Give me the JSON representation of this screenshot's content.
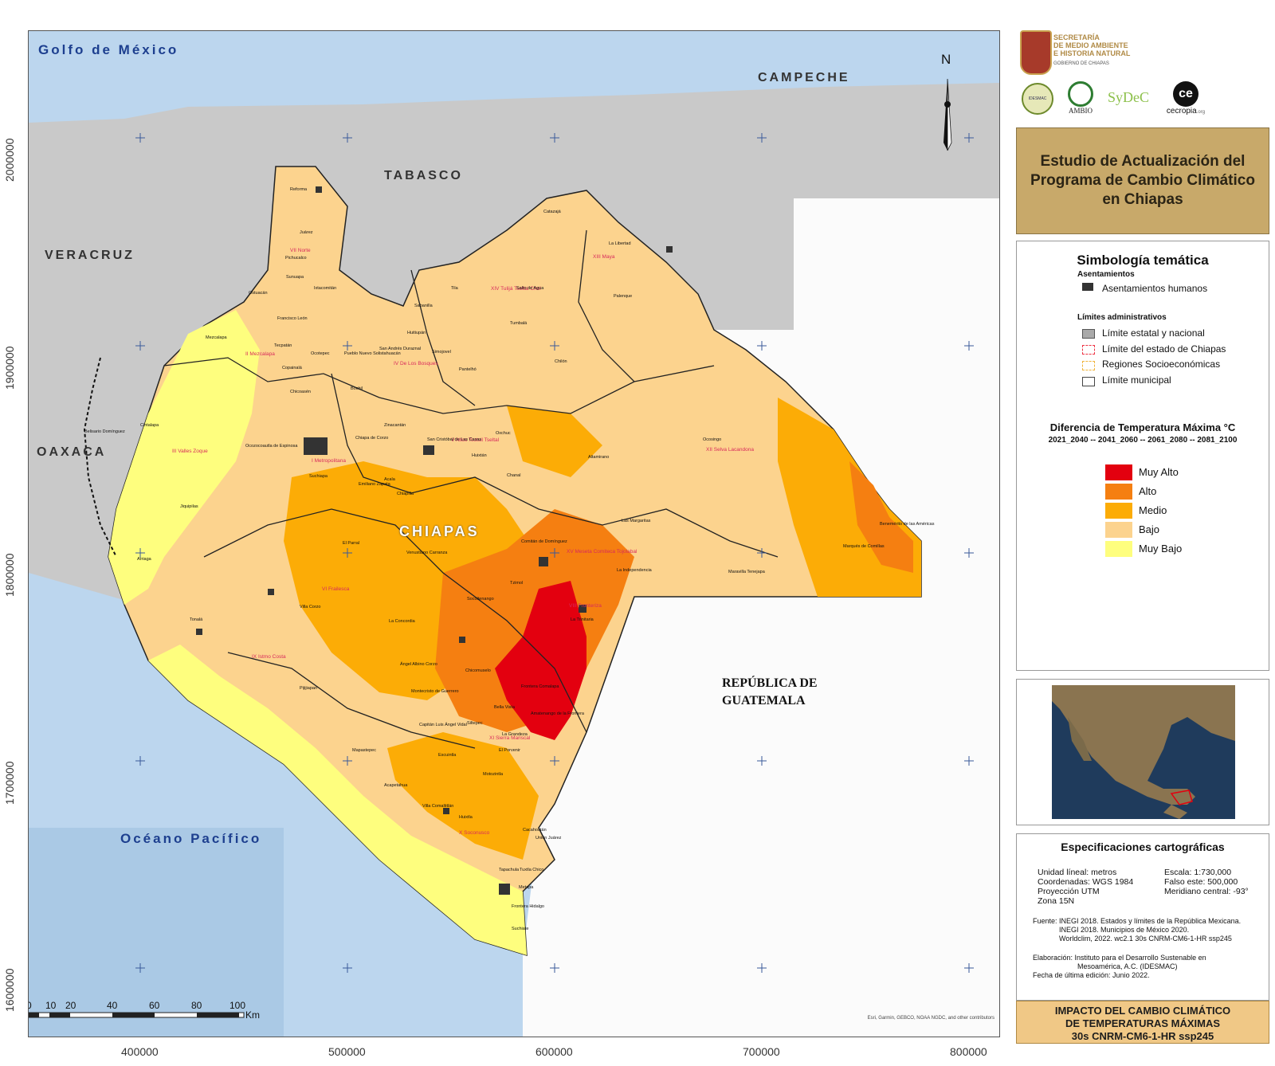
{
  "map": {
    "labels": {
      "golfo": "Golfo de México",
      "campeche": "CAMPECHE",
      "tabasco": "TABASCO",
      "veracruz": "VERACRUZ",
      "oaxaca": "OAXACA",
      "chiapas": "CHIAPAS",
      "guatemala_1": "REPÚBLICA DE",
      "guatemala_2": "GUATEMALA",
      "pacifico": "Océano Pacífico",
      "north": "N"
    },
    "regions": [
      "VII Norte",
      "XIII Maya",
      "XIV Tulijá Tseltal Chol",
      "II Mezcalapa",
      "V Altos Tsotsil Tseltal",
      "XV Meseta Comiteca Tojolabal",
      "VI Frailesca",
      "IX Istmo Costa",
      "XI Sierra Mariscal",
      "X Soconusco",
      "XII Selva Lacandona",
      "III Valles Zoque",
      "I Metropolitana",
      "IV De Los Bosques",
      "VIII Fronteriza"
    ],
    "places": [
      "Reforma",
      "Juárez",
      "Ostuacán",
      "Pichucalco",
      "Sunuapa",
      "Ixtacomitán",
      "Catazajá",
      "La Libertad",
      "Palenque",
      "Salto de Agua",
      "Tila",
      "Tumbalá",
      "Sabanilla",
      "Huitiupán",
      "Mezcalapa",
      "Francisco León",
      "Tecpatán",
      "Copainalá",
      "Chicoasén",
      "Ocotepec",
      "Pueblo Nuevo Solistahuacán",
      "San Andrés Duraznal",
      "Simojovel",
      "Chilón",
      "Pantelhó",
      "Bochil",
      "Ocosingo",
      "Belisario Domínguez",
      "Cintalapa",
      "Jiquipilas",
      "Ocozocoautla de Espinosa",
      "Suchiapa",
      "Chiapa de Corzo",
      "Zinacantán",
      "San Cristóbal de Las Casas",
      "Huixtán",
      "Oxchuc",
      "Chanal",
      "Altamirano",
      "Las Margaritas",
      "Benemérito de las Américas",
      "Marqués de Comillas",
      "Maravilla Tenejapa",
      "Comitán de Domínguez",
      "La Independencia",
      "Tzimol",
      "La Trinitaria",
      "Frontera Comalapa",
      "Chicomuselo",
      "Socoltenango",
      "Venustiano Carranza",
      "Acala",
      "Emiliano Zapata",
      "Chiapilla",
      "El Parral",
      "Villa Corzo",
      "La Concordia",
      "Tonalá",
      "Arriaga",
      "Pijijiapan",
      "Mapastepec",
      "Acapetahua",
      "Escuintla",
      "Villa Comaltitlán",
      "Huixtla",
      "Tapachula",
      "Suchiate",
      "Frontera Hidalgo",
      "Metapa",
      "Cacahoatán",
      "Unión Juárez",
      "Tuxtla Chico",
      "Motozintla",
      "Siltepec",
      "El Porvenir",
      "La Grandeza",
      "Bella Vista",
      "Amatenango de la Frontera",
      "Capitán Luis Ángel Vidal",
      "Montecristo de Guerrero",
      "Ángel Albino Corzo"
    ],
    "credit": "Esri, Garmin, GEBCO, NOAA NGDC, and other contributors",
    "x_ticks": [
      "400000",
      "500000",
      "600000",
      "700000",
      "800000"
    ],
    "y_ticks": [
      "2000000",
      "1900000",
      "1800000",
      "1700000",
      "1600000"
    ],
    "scale_numbers": [
      "0",
      "10",
      "20",
      "40",
      "60",
      "80",
      "100"
    ],
    "scale_unit": "Km"
  },
  "header": {
    "logo_lines": [
      "SECRETARÍA",
      "DE MEDIO AMBIENTE",
      "E HISTORIA NATURAL",
      "GOBIERNO DE CHIAPAS"
    ],
    "partner_logos": [
      "IDESMAC",
      "AMBIO",
      "SyDeC",
      "cecropia.org"
    ],
    "cecropia_mark": "ce",
    "cecropia_text": "cecropia",
    "cecropia_suffix": ".org"
  },
  "title": {
    "line1": "Estudio de Actualización del",
    "line2": "Programa de Cambio Climático",
    "line3": "en Chiapas"
  },
  "legend": {
    "heading": "Simbología temática",
    "asentamientos_title": "Asentamientos",
    "asentamientos_item": "Asentamientos humanos",
    "limites_title": "Límites administrativos",
    "limite_estatal": "Límite estatal y nacional",
    "limite_chiapas": "Límite del estado de Chiapas",
    "regiones": "Regiones Socioeconómicas",
    "limite_municipal": "Límite municipal",
    "temp_title": "Diferencia de Temperatura Máxima °C",
    "temp_periods": "2021_2040 -- 2041_2060 -- 2061_2080 -- 2081_2100",
    "classes": [
      {
        "label": "Muy Alto",
        "color": "#e3000f"
      },
      {
        "label": "Alto",
        "color": "#f57f11"
      },
      {
        "label": "Medio",
        "color": "#fcac06"
      },
      {
        "label": "Bajo",
        "color": "#fcd38e"
      },
      {
        "label": "Muy Bajo",
        "color": "#fefe7e"
      }
    ]
  },
  "specs": {
    "heading": "Especificaciones cartográficas",
    "left": [
      "Unidad líneal: metros",
      "Coordenadas: WGS 1984",
      "Proyección UTM",
      "Zona 15N"
    ],
    "right": [
      "Escala: 1:730,000",
      "Falso este: 500,000",
      "Meridiano central: -93°"
    ],
    "fuente": [
      "Fuente: INEGI 2018. Estados y límites de la República Mexicana.",
      "INEGI 2018. Municipios de México 2020.",
      "Worldclim, 2022.  wc2.1 30s CNRM-CM6-1-HR ssp245"
    ],
    "elaboracion": [
      "Elaboración: Instituto para el Desarrollo Sustenable en",
      "Mesoamérica, A.C. (IDESMAC)",
      "Fecha de última edición: Junio 2022."
    ]
  },
  "impact": {
    "line1": "IMPACTO DEL CAMBIO CLIMÁTICO",
    "line2": "DE TEMPERATURAS MÁXIMAS",
    "line3": "30s CNRM-CM6-1-HR ssp245"
  },
  "colors": {
    "land_grey": "#c9c9c9",
    "guatemala": "#fbfbfb",
    "ocean": "#bcd6ee",
    "title_bg": "#c8a96a",
    "impact_bg": "#f0c886"
  }
}
